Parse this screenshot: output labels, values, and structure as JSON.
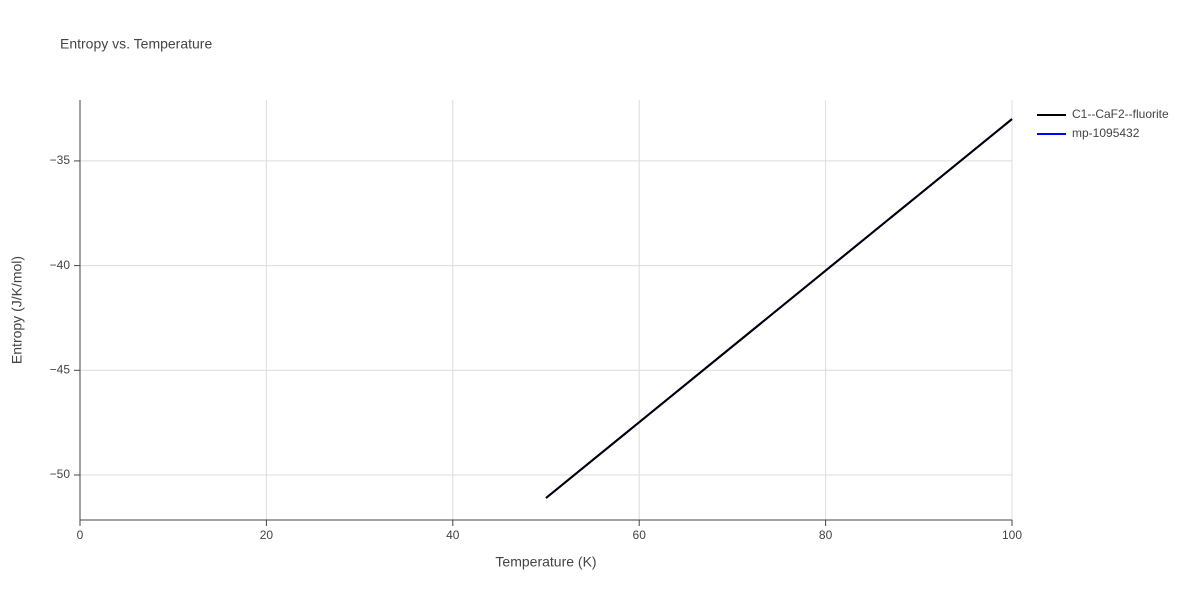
{
  "chart_data": {
    "type": "line",
    "title": "Entropy vs. Temperature",
    "xlabel": "Temperature (K)",
    "ylabel": "Entropy (J/K/mol)",
    "x": [
      50,
      60,
      70,
      80,
      90,
      100
    ],
    "series": [
      {
        "name": "C1--CaF2--fluorite",
        "color": "#000000",
        "values": [
          -51.1,
          -47.48,
          -43.86,
          -40.24,
          -36.62,
          -33.0
        ]
      },
      {
        "name": "mp-1095432",
        "color": "#0000ff",
        "values": [
          -51.1,
          -47.48,
          -43.86,
          -40.24,
          -36.62,
          -33.0
        ]
      }
    ],
    "xlim": [
      0,
      100
    ],
    "xticks": [
      0,
      20,
      40,
      60,
      80,
      100
    ],
    "ylim": [
      -52.15,
      -32.09
    ],
    "yticks": [
      {
        "value": -50,
        "label": "−50"
      },
      {
        "value": -45,
        "label": "−45"
      },
      {
        "value": -40,
        "label": "−40"
      },
      {
        "value": -35,
        "label": "−35"
      }
    ],
    "grid": true,
    "legend": "right"
  }
}
